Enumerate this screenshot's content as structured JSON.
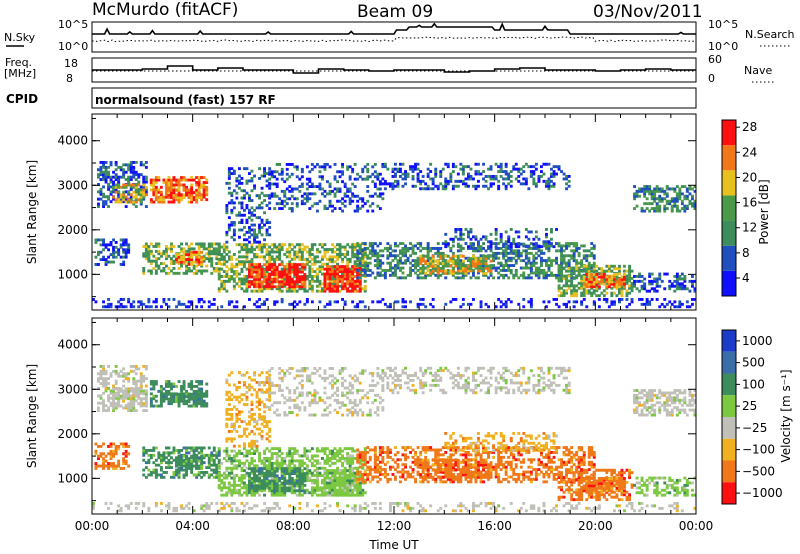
{
  "header": {
    "station": "McMurdo (fitACF)",
    "beam": "Beam 09",
    "date": "03/Nov/2011"
  },
  "sky_panel": {
    "left_label": "N.Sky",
    "right_label": "N.Search",
    "left_ticks": [
      "10^5",
      "10^0"
    ],
    "right_ticks": [
      "10^5",
      "10^0"
    ]
  },
  "freq_panel": {
    "left_label_1": "Freq.",
    "left_label_2": "[MHz]",
    "right_label": "Nave",
    "left_ticks": [
      "18",
      "8"
    ],
    "right_ticks": [
      "60",
      "0"
    ]
  },
  "cpid": {
    "label": "CPID",
    "program": "normalsound (fast) 157 RF"
  },
  "chart_data": [
    {
      "type": "heatmap",
      "panel": "power",
      "ylabel": "Slant Range [km]",
      "xlabel": "",
      "yticks": [
        "1000",
        "2000",
        "3000",
        "4000"
      ],
      "ylim": [
        200,
        4600
      ],
      "colorbar_label": "Power [dB]",
      "colorbar_ticks": [
        "4",
        "8",
        "12",
        "16",
        "20",
        "24",
        "28"
      ],
      "colors": [
        "#1010ff",
        "#2050c0",
        "#3c8c5c",
        "#4a9a4a",
        "#e8c020",
        "#f07818",
        "#ff1010"
      ]
    },
    {
      "type": "heatmap",
      "panel": "velocity",
      "ylabel": "Slant Range [km]",
      "xlabel": "Time UT",
      "yticks": [
        "1000",
        "2000",
        "3000",
        "4000"
      ],
      "xticks": [
        "00:00",
        "04:00",
        "08:00",
        "12:00",
        "16:00",
        "20:00",
        "00:00"
      ],
      "ylim": [
        200,
        4600
      ],
      "colorbar_label": "Velocity [m s⁻¹]",
      "colorbar_ticks": [
        "1000",
        "500",
        "100",
        "25",
        "−25",
        "−100",
        "−500",
        "−1000"
      ],
      "colors": [
        "#1a3cc8",
        "#3a6ea8",
        "#3c8c5c",
        "#7cc840",
        "#c0c0b8",
        "#f0b020",
        "#f07818",
        "#ff1010"
      ]
    }
  ]
}
